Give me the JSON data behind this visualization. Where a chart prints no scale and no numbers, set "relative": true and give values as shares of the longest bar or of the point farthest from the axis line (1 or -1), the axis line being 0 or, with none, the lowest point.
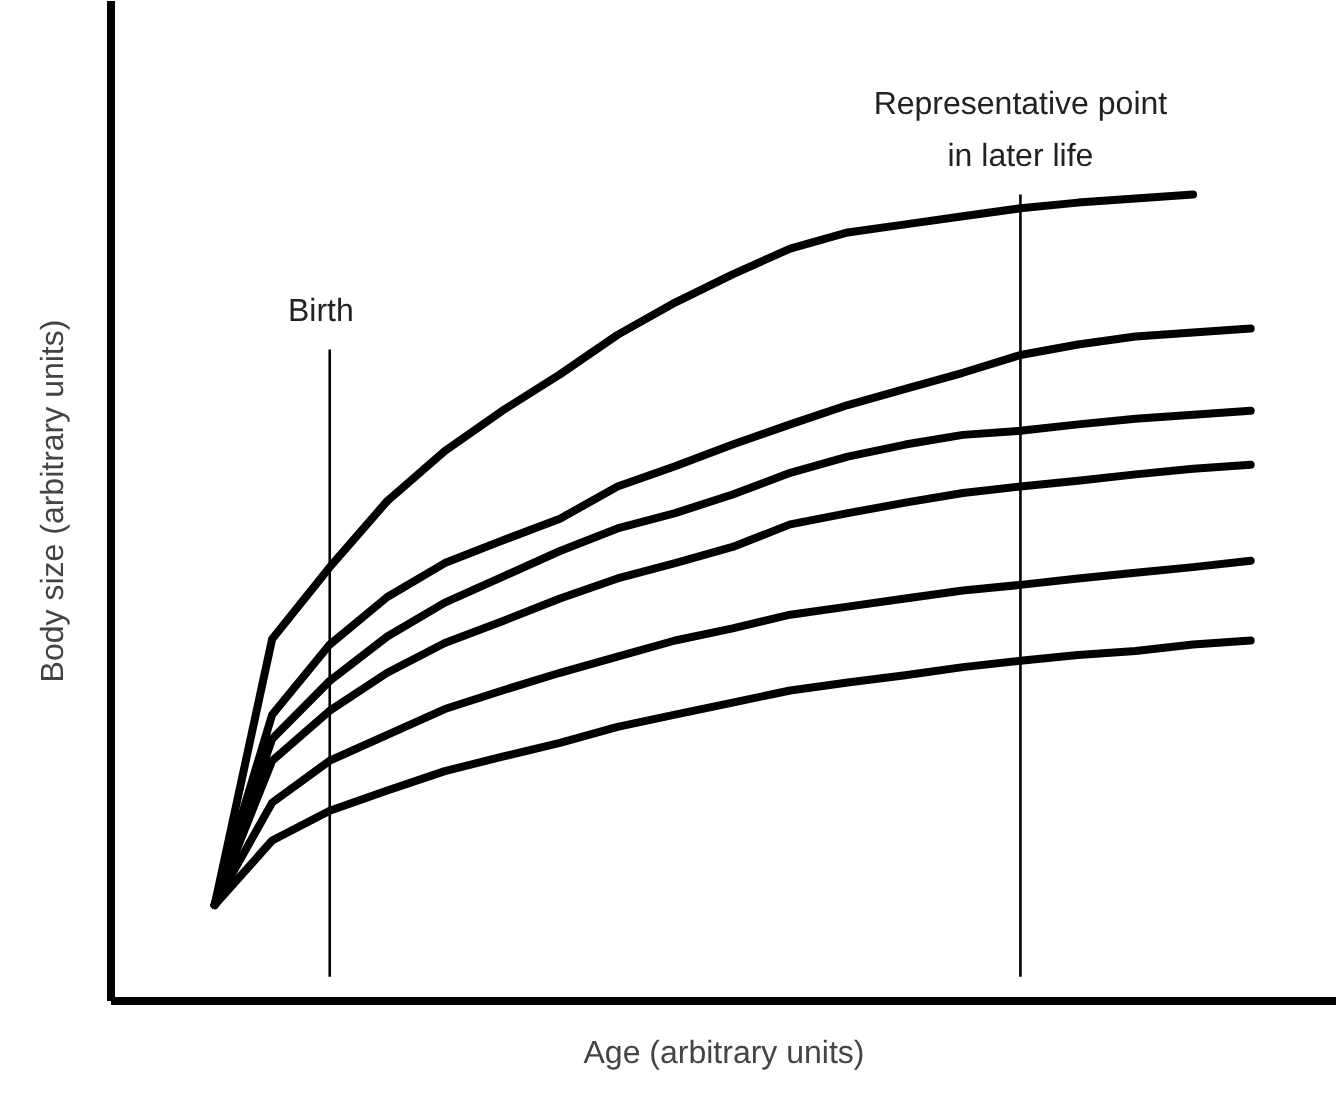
{
  "chart_data": {
    "type": "line",
    "relative": true,
    "xlabel": "Age (arbitrary units)",
    "ylabel": "Body size (arbitrary units)",
    "marker": "none",
    "line_style": "solid",
    "categories": [
      null,
      null,
      null,
      null,
      null,
      null,
      null,
      null,
      null,
      null,
      null,
      null,
      null,
      null,
      null,
      null,
      null,
      null,
      null
    ],
    "series": [
      {
        "color": "#000000",
        "values": [
          0.119,
          0.449,
          0.538,
          0.62,
          0.682,
          0.732,
          0.777,
          0.826,
          0.866,
          0.901,
          0.933,
          0.953,
          0.963,
          0.973,
          0.983,
          0.99,
          0.995,
          1.0,
          null
        ]
      },
      {
        "color": "#000000",
        "values": [
          0.119,
          0.355,
          0.442,
          0.501,
          0.543,
          0.571,
          0.598,
          0.638,
          0.663,
          0.69,
          0.715,
          0.739,
          0.759,
          0.779,
          0.801,
          0.814,
          0.824,
          0.829,
          0.834
        ]
      },
      {
        "color": "#000000",
        "values": [
          0.119,
          0.325,
          0.397,
          0.452,
          0.494,
          0.526,
          0.558,
          0.586,
          0.605,
          0.628,
          0.655,
          0.675,
          0.69,
          0.702,
          0.707,
          0.715,
          0.722,
          0.727,
          0.732
        ]
      },
      {
        "color": "#000000",
        "values": [
          0.119,
          0.298,
          0.36,
          0.407,
          0.444,
          0.471,
          0.499,
          0.524,
          0.543,
          0.563,
          0.591,
          0.605,
          0.618,
          0.63,
          0.638,
          0.645,
          0.653,
          0.66,
          0.665
        ]
      },
      {
        "color": "#000000",
        "values": [
          0.119,
          0.246,
          0.298,
          0.33,
          0.362,
          0.385,
          0.407,
          0.427,
          0.447,
          0.462,
          0.479,
          0.489,
          0.499,
          0.509,
          0.516,
          0.524,
          0.531,
          0.538,
          0.546
        ]
      },
      {
        "color": "#000000",
        "values": [
          0.119,
          0.199,
          0.236,
          0.261,
          0.285,
          0.303,
          0.32,
          0.34,
          0.355,
          0.37,
          0.385,
          0.395,
          0.404,
          0.414,
          0.422,
          0.429,
          0.434,
          0.442,
          0.447
        ]
      }
    ],
    "annotations": [
      "Birth",
      "Representative point in later life"
    ]
  }
}
